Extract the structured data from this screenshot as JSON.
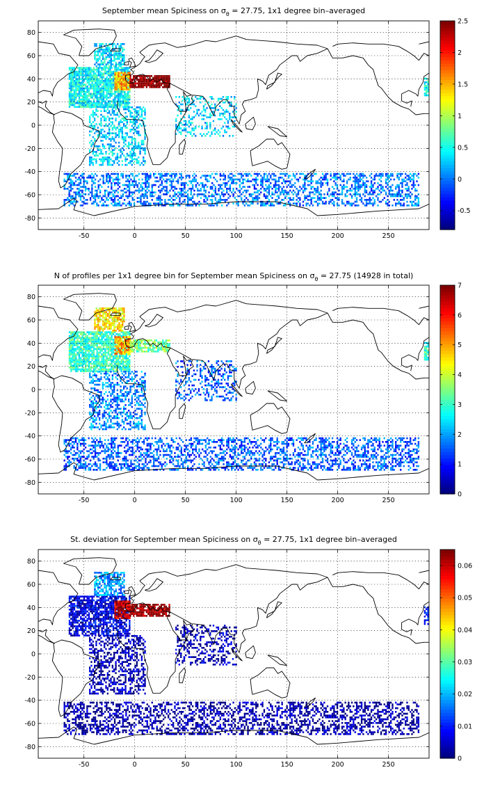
{
  "chart_data": [
    {
      "type": "heatmap",
      "title_prefix": "September mean Spiciness on ",
      "title_symbol": "σ",
      "title_sub": "θ",
      "title_suffix": " = 27.75, 1x1 degree bin–averaged",
      "xlim": [
        -95,
        290
      ],
      "ylim": [
        -90,
        90
      ],
      "xticks": [
        -50,
        0,
        50,
        100,
        150,
        200,
        250
      ],
      "yticks": [
        -80,
        -60,
        -40,
        -20,
        0,
        20,
        40,
        60,
        80
      ],
      "grid": true,
      "colorbar": {
        "min": -0.8,
        "max": 2.5,
        "ticks": [
          -0.5,
          0,
          0.5,
          1,
          1.5,
          2,
          2.5
        ],
        "ticklabels": [
          "-0.5",
          "0",
          "0.5",
          "1",
          "1.5",
          "2",
          "2.5"
        ]
      },
      "regions": [
        {
          "x": [
            -65,
            -5
          ],
          "y": [
            15,
            50
          ],
          "value": 0.45,
          "density": 0.85
        },
        {
          "x": [
            -40,
            -10
          ],
          "y": [
            50,
            70
          ],
          "value": 0.35,
          "density": 0.7
        },
        {
          "x": [
            -20,
            -5
          ],
          "y": [
            30,
            45
          ],
          "value": 1.5,
          "density": 0.9
        },
        {
          "x": [
            -5,
            35
          ],
          "y": [
            32,
            42
          ],
          "value": 2.5,
          "density": 0.9
        },
        {
          "x": [
            -45,
            10
          ],
          "y": [
            -35,
            15
          ],
          "value": 0.3,
          "density": 0.45
        },
        {
          "x": [
            40,
            100
          ],
          "y": [
            -10,
            25
          ],
          "value": 0.3,
          "density": 0.3
        },
        {
          "x": [
            -70,
            280
          ],
          "y": [
            -70,
            -42
          ],
          "value": 0.0,
          "density": 0.45
        },
        {
          "x": [
            285,
            290
          ],
          "y": [
            25,
            40
          ],
          "value": 0.5,
          "density": 0.8
        }
      ]
    },
    {
      "type": "heatmap",
      "title_prefix": "N of profiles per 1x1 degree bin for September mean Spiciness on ",
      "title_symbol": "σ",
      "title_sub": "θ",
      "title_suffix": " = 27.75 (14928 in total)",
      "xlim": [
        -95,
        290
      ],
      "ylim": [
        -90,
        90
      ],
      "xticks": [
        -50,
        0,
        50,
        100,
        150,
        200,
        250
      ],
      "yticks": [
        -80,
        -60,
        -40,
        -20,
        0,
        20,
        40,
        60,
        80
      ],
      "grid": true,
      "colorbar": {
        "min": 0,
        "max": 7,
        "ticks": [
          0,
          1,
          2,
          3,
          4,
          5,
          6,
          7
        ],
        "ticklabels": [
          "0",
          "1",
          "2",
          "3",
          "4",
          "5",
          "6",
          "7"
        ]
      },
      "regions": [
        {
          "x": [
            -65,
            -5
          ],
          "y": [
            15,
            50
          ],
          "value": 3.0,
          "density": 0.85
        },
        {
          "x": [
            -40,
            -10
          ],
          "y": [
            50,
            70
          ],
          "value": 4.5,
          "density": 0.75
        },
        {
          "x": [
            -20,
            -5
          ],
          "y": [
            30,
            45
          ],
          "value": 5.0,
          "density": 0.9
        },
        {
          "x": [
            -5,
            35
          ],
          "y": [
            32,
            42
          ],
          "value": 3.5,
          "density": 0.8
        },
        {
          "x": [
            -45,
            10
          ],
          "y": [
            -35,
            15
          ],
          "value": 1.8,
          "density": 0.45
        },
        {
          "x": [
            40,
            100
          ],
          "y": [
            -10,
            25
          ],
          "value": 1.5,
          "density": 0.3
        },
        {
          "x": [
            -70,
            280
          ],
          "y": [
            -70,
            -42
          ],
          "value": 1.5,
          "density": 0.45
        },
        {
          "x": [
            285,
            290
          ],
          "y": [
            25,
            40
          ],
          "value": 3.0,
          "density": 0.8
        }
      ]
    },
    {
      "type": "heatmap",
      "title_prefix": "St. deviation for September mean Spiciness on ",
      "title_symbol": "σ",
      "title_sub": "θ",
      "title_suffix": " = 27.75, 1x1 degree bin–averaged",
      "xlim": [
        -95,
        290
      ],
      "ylim": [
        -90,
        90
      ],
      "xticks": [
        -50,
        0,
        50,
        100,
        150,
        200,
        250
      ],
      "yticks": [
        -80,
        -60,
        -40,
        -20,
        0,
        20,
        40,
        60,
        80
      ],
      "grid": true,
      "colorbar": {
        "min": 0,
        "max": 0.065,
        "ticks": [
          0,
          0.01,
          0.02,
          0.03,
          0.04,
          0.05,
          0.06
        ],
        "ticklabels": [
          "0",
          "0.01",
          "0.02",
          "0.03",
          "0.04",
          "0.05",
          "0.06"
        ]
      },
      "regions": [
        {
          "x": [
            -65,
            -5
          ],
          "y": [
            15,
            50
          ],
          "value": 0.006,
          "density": 0.75
        },
        {
          "x": [
            -40,
            -10
          ],
          "y": [
            50,
            70
          ],
          "value": 0.018,
          "density": 0.7
        },
        {
          "x": [
            -20,
            -5
          ],
          "y": [
            30,
            45
          ],
          "value": 0.06,
          "density": 0.9
        },
        {
          "x": [
            -5,
            35
          ],
          "y": [
            32,
            42
          ],
          "value": 0.065,
          "density": 0.85
        },
        {
          "x": [
            -45,
            10
          ],
          "y": [
            -35,
            15
          ],
          "value": 0.003,
          "density": 0.45
        },
        {
          "x": [
            40,
            100
          ],
          "y": [
            -10,
            25
          ],
          "value": 0.003,
          "density": 0.3
        },
        {
          "x": [
            -70,
            280
          ],
          "y": [
            -70,
            -42
          ],
          "value": 0.002,
          "density": 0.45
        },
        {
          "x": [
            285,
            290
          ],
          "y": [
            25,
            40
          ],
          "value": 0.01,
          "density": 0.75
        }
      ]
    }
  ]
}
